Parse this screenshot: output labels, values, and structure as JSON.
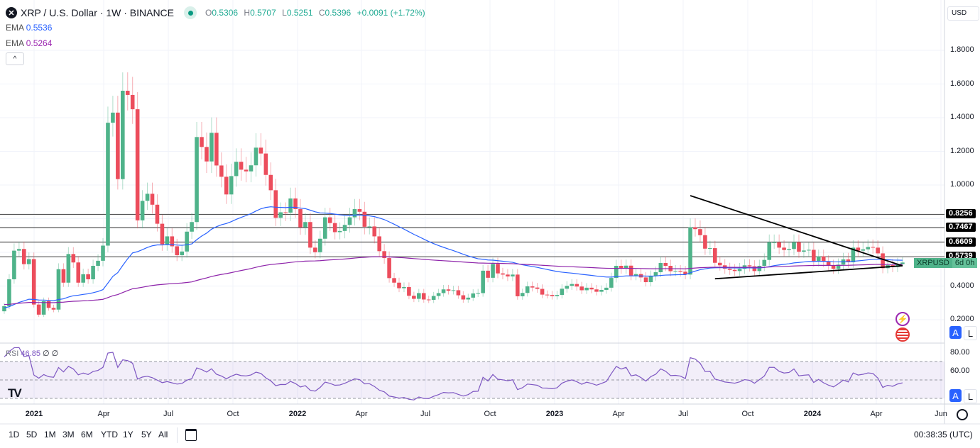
{
  "header": {
    "symbol_icon": "xrp-logo-icon",
    "title": "XRP / U.S. Dollar · 1W · BINANCE",
    "market_status_color": "#089981",
    "ohlc": {
      "o_label": "O",
      "o": "0.5306",
      "h_label": "H",
      "h": "0.5707",
      "l_label": "L",
      "l": "0.5251",
      "c_label": "C",
      "c": "0.5396",
      "change": "+0.0091 (+1.72%)"
    }
  },
  "indicators": [
    {
      "label": "EMA",
      "value": "0.5536",
      "color": "#2962ff"
    },
    {
      "label": "EMA",
      "value": "0.5264",
      "color": "#9c27b0"
    }
  ],
  "currency_selector": "USD",
  "price_axis": [
    "1.8000",
    "1.6000",
    "1.4000",
    "1.2000",
    "1.0000",
    "0.4000",
    "0.2000"
  ],
  "horizontal_levels": [
    "0.8256",
    "0.7467",
    "0.6609",
    "0.5739"
  ],
  "symbol_tag": {
    "symbol": "XRPUSD",
    "countdown": "6d 0h",
    "color": "#4fb38a"
  },
  "time_axis": [
    {
      "label": "2021",
      "bold": true
    },
    {
      "label": "Apr"
    },
    {
      "label": "Jul"
    },
    {
      "label": "Oct"
    },
    {
      "label": "2022",
      "bold": true
    },
    {
      "label": "Apr"
    },
    {
      "label": "Jul"
    },
    {
      "label": "Oct"
    },
    {
      "label": "2023",
      "bold": true
    },
    {
      "label": "Apr"
    },
    {
      "label": "Jul"
    },
    {
      "label": "Oct"
    },
    {
      "label": "2024",
      "bold": true
    },
    {
      "label": "Apr"
    },
    {
      "label": "Jun"
    }
  ],
  "rsi": {
    "label": "RSI",
    "value": "46.85",
    "extra1": "∅",
    "extra2": "∅",
    "axis": [
      "80.00",
      "60.00"
    ],
    "color": "#7e57c2"
  },
  "scale_buttons": {
    "auto": "A",
    "log": "L"
  },
  "timeframes": [
    "1D",
    "5D",
    "1M",
    "3M",
    "6M",
    "YTD",
    "1Y",
    "5Y",
    "All"
  ],
  "clock": "00:38:35 (UTC)",
  "colors": {
    "up": "#4fb38a",
    "down": "#ec4d5c",
    "ema_fast": "#2962ff",
    "ema_slow": "#8e24aa"
  },
  "chart_data": {
    "type": "candlestick",
    "interval": "1W",
    "first_open": 0.25,
    "closes": [
      0.28,
      0.44,
      0.61,
      0.62,
      0.53,
      0.56,
      0.29,
      0.23,
      0.31,
      0.27,
      0.26,
      0.5,
      0.42,
      0.59,
      0.54,
      0.42,
      0.47,
      0.44,
      0.52,
      0.55,
      0.64,
      1.37,
      1.43,
      1.035,
      1.56,
      1.535,
      1.45,
      0.79,
      0.906,
      0.948,
      0.883,
      0.77,
      0.648,
      0.695,
      0.636,
      0.583,
      0.605,
      0.723,
      0.78,
      1.285,
      1.226,
      1.14,
      1.31,
      1.116,
      1.049,
      0.944,
      1.053,
      1.138,
      1.091,
      1.081,
      1.117,
      1.222,
      1.187,
      1.06,
      0.969,
      0.805,
      0.838,
      0.836,
      0.92,
      0.857,
      0.749,
      0.78,
      0.628,
      0.601,
      0.681,
      0.808,
      0.774,
      0.72,
      0.727,
      0.763,
      0.808,
      0.857,
      0.841,
      0.752,
      0.754,
      0.695,
      0.607,
      0.566,
      0.447,
      0.42,
      0.387,
      0.394,
      0.342,
      0.324,
      0.358,
      0.32,
      0.318,
      0.341,
      0.358,
      0.38,
      0.372,
      0.375,
      0.345,
      0.32,
      0.331,
      0.356,
      0.358,
      0.491,
      0.449,
      0.531,
      0.475,
      0.468,
      0.457,
      0.468,
      0.339,
      0.359,
      0.398,
      0.391,
      0.383,
      0.349,
      0.347,
      0.34,
      0.347,
      0.384,
      0.401,
      0.412,
      0.397,
      0.375,
      0.39,
      0.38,
      0.366,
      0.377,
      0.39,
      0.448,
      0.52,
      0.503,
      0.521,
      0.462,
      0.471,
      0.451,
      0.423,
      0.46,
      0.482,
      0.537,
      0.52,
      0.488,
      0.49,
      0.485,
      0.468,
      0.749,
      0.738,
      0.702,
      0.622,
      0.625,
      0.538,
      0.523,
      0.503,
      0.496,
      0.489,
      0.502,
      0.523,
      0.517,
      0.489,
      0.52,
      0.555,
      0.66,
      0.66,
      0.628,
      0.614,
      0.62,
      0.66,
      0.604,
      0.611,
      0.615,
      0.548,
      0.576,
      0.544,
      0.52,
      0.502,
      0.527,
      0.558,
      0.541,
      0.628,
      0.61,
      0.618,
      0.632,
      0.628,
      0.594,
      0.506,
      0.524,
      0.513,
      0.5306,
      0.5396
    ],
    "last_candle": {
      "o": 0.5306,
      "h": 0.5707,
      "l": 0.5251,
      "c": 0.5396
    },
    "ylim": [
      0.15,
      1.9
    ],
    "yscale": "linear",
    "trendlines": [
      {
        "from": {
          "week": 140,
          "price": 0.937
        },
        "to": {
          "week": 183,
          "price": 0.52
        }
      },
      {
        "from": {
          "week": 145,
          "price": 0.443
        },
        "to": {
          "week": 183,
          "price": 0.52
        }
      }
    ],
    "grid": true
  }
}
